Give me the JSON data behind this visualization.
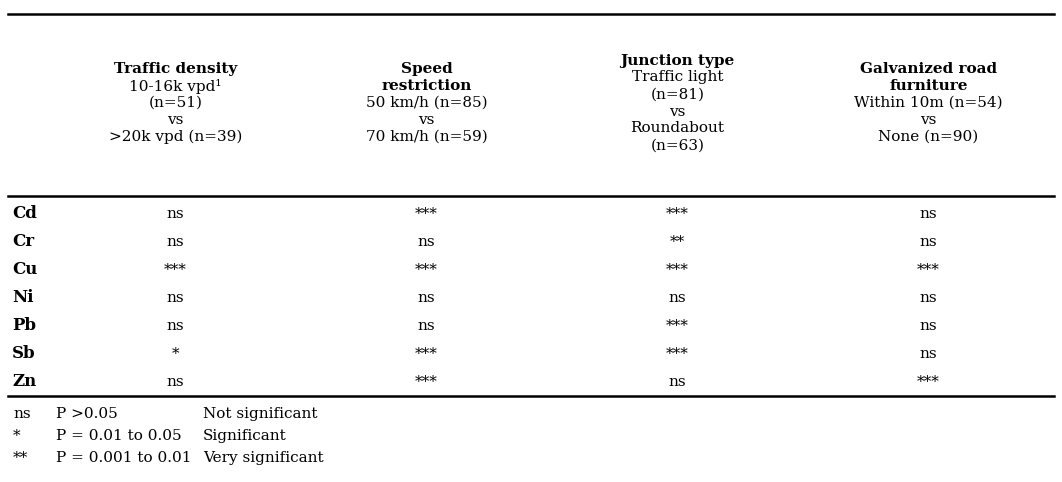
{
  "col_headers": [
    [
      "Traffic density",
      "10-16k vpd¹",
      "(n=51)",
      "vs",
      ">20k vpd (n=39)"
    ],
    [
      "Speed\nrestriction",
      "50 km/h (n=85)",
      "vs",
      "70 km/h (n=59)"
    ],
    [
      "Junction type",
      "Traffic light",
      "(n=81)",
      "vs",
      "Roundabout",
      "(n=63)"
    ],
    [
      "Galvanized road\nfurniture",
      "Within 10m (n=54)",
      "vs",
      "None (n=90)"
    ]
  ],
  "col_headers_bold_lines": [
    1,
    2,
    1,
    2
  ],
  "row_labels": [
    "Cd",
    "Cr",
    "Cu",
    "Ni",
    "Pb",
    "Sb",
    "Zn"
  ],
  "data": [
    [
      "ns",
      "***",
      "***",
      "ns"
    ],
    [
      "ns",
      "ns",
      "**",
      "ns"
    ],
    [
      "***",
      "***",
      "***",
      "***"
    ],
    [
      "ns",
      "ns",
      "ns",
      "ns"
    ],
    [
      "ns",
      "ns",
      "***",
      "ns"
    ],
    [
      "*",
      "***",
      "***",
      "ns"
    ],
    [
      "ns",
      "***",
      "ns",
      "***"
    ]
  ],
  "legend": [
    [
      "ns",
      "P >0.05",
      "Not significant"
    ],
    [
      "*",
      "P = 0.01 to 0.05",
      "Significant"
    ],
    [
      "**",
      "P = 0.001 to 0.01",
      "Very significant"
    ]
  ],
  "bg_color": "#ffffff",
  "text_color": "#000000",
  "font_size": 11,
  "header_font_size": 11
}
